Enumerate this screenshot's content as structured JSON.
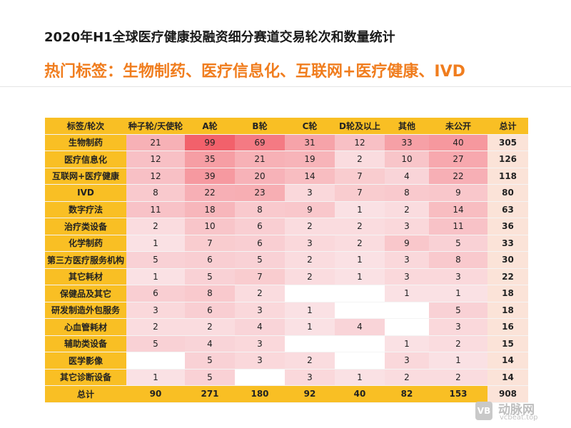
{
  "title": "2020年H1全球医疗健康投融资细分赛道交易轮次和数量统计",
  "subtitle": "热门标签：生物制药、医疗信息化、互联网+医疗健康、IVD",
  "brand": {
    "name": "动脉网",
    "url": "vcbeat.top",
    "mark": "VB"
  },
  "colors": {
    "header": "#f9bf24",
    "total_column": "#fbe3d8",
    "subtitle": "#f07d1e",
    "heat_low": "#ffffff",
    "heat_high": "#f2616b"
  },
  "table": {
    "headers": [
      "标签/轮次",
      "种子轮/天使轮",
      "A轮",
      "B轮",
      "C轮",
      "D轮及以上",
      "其他",
      "未公开",
      "总计"
    ],
    "rows": [
      {
        "label": "生物制药",
        "values": [
          "21",
          "99",
          "69",
          "31",
          "12",
          "33",
          "40"
        ],
        "total": "305"
      },
      {
        "label": "医疗信息化",
        "values": [
          "12",
          "35",
          "21",
          "19",
          "2",
          "10",
          "27"
        ],
        "total": "126"
      },
      {
        "label": "互联网+医疗健康",
        "values": [
          "12",
          "39",
          "20",
          "14",
          "7",
          "4",
          "22"
        ],
        "total": "118"
      },
      {
        "label": "IVD",
        "values": [
          "8",
          "22",
          "23",
          "3",
          "7",
          "8",
          "9"
        ],
        "total": "80"
      },
      {
        "label": "数字疗法",
        "values": [
          "11",
          "18",
          "8",
          "9",
          "1",
          "2",
          "14"
        ],
        "total": "63"
      },
      {
        "label": "治疗类设备",
        "values": [
          "2",
          "10",
          "6",
          "2",
          "2",
          "3",
          "11"
        ],
        "total": "36"
      },
      {
        "label": "化学制药",
        "values": [
          "1",
          "7",
          "6",
          "3",
          "2",
          "9",
          "5"
        ],
        "total": "33"
      },
      {
        "label": "第三方医疗服务机构",
        "values": [
          "5",
          "6",
          "5",
          "2",
          "1",
          "3",
          "8"
        ],
        "total": "30"
      },
      {
        "label": "其它耗材",
        "values": [
          "1",
          "5",
          "7",
          "2",
          "1",
          "3",
          "3"
        ],
        "total": "22"
      },
      {
        "label": "保健品及其它",
        "values": [
          "6",
          "8",
          "2",
          "",
          "",
          "1",
          "1"
        ],
        "total": "18"
      },
      {
        "label": "研发制造外包服务",
        "values": [
          "3",
          "6",
          "3",
          "1",
          "",
          "",
          "5"
        ],
        "total": "18"
      },
      {
        "label": "心血管耗材",
        "values": [
          "2",
          "2",
          "4",
          "1",
          "4",
          "",
          "3"
        ],
        "total": "16"
      },
      {
        "label": "辅助类设备",
        "values": [
          "5",
          "4",
          "3",
          "",
          "",
          "1",
          "2"
        ],
        "total": "15"
      },
      {
        "label": "医学影像",
        "values": [
          "",
          "5",
          "3",
          "2",
          "",
          "3",
          "1"
        ],
        "total": "14"
      },
      {
        "label": "其它诊断设备",
        "values": [
          "1",
          "5",
          "",
          "3",
          "1",
          "2",
          "2"
        ],
        "total": "14"
      }
    ],
    "footer": {
      "label": "总计",
      "values": [
        "90",
        "271",
        "180",
        "92",
        "40",
        "82",
        "153"
      ],
      "total": "908"
    }
  }
}
